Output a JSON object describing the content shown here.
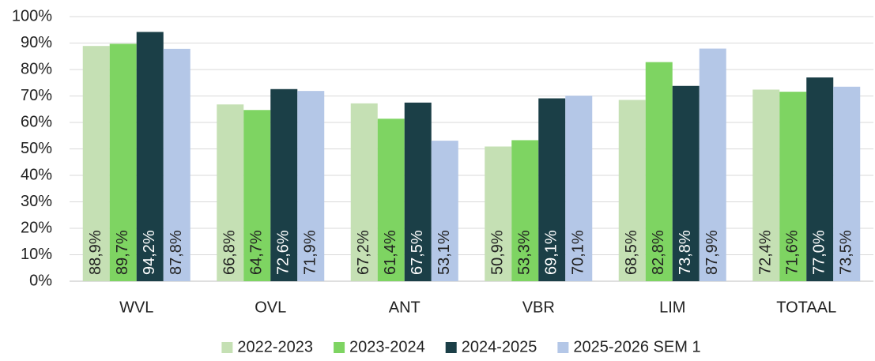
{
  "chart_data": {
    "type": "bar",
    "categories": [
      "WVL",
      "OVL",
      "ANT",
      "VBR",
      "LIM",
      "TOTAAL"
    ],
    "series": [
      {
        "name": "2022-2023",
        "color": "#c5e0b4",
        "label_color": "#222222",
        "values": [
          88.9,
          66.8,
          67.2,
          50.9,
          68.5,
          72.4
        ],
        "value_labels": [
          "88,9%",
          "66,8%",
          "67,2%",
          "50,9%",
          "68,5%",
          "72,4%"
        ]
      },
      {
        "name": "2023-2024",
        "color": "#7ed462",
        "label_color": "#222222",
        "values": [
          89.7,
          64.7,
          61.4,
          53.3,
          82.8,
          71.6
        ],
        "value_labels": [
          "89,7%",
          "64,7%",
          "61,4%",
          "53,3%",
          "82,8%",
          "71,6%"
        ]
      },
      {
        "name": "2024-2025",
        "color": "#1b3f47",
        "label_color": "#ffffff",
        "values": [
          94.2,
          72.6,
          67.5,
          69.1,
          73.8,
          77.0
        ],
        "value_labels": [
          "94,2%",
          "72,6%",
          "67,5%",
          "69,1%",
          "73,8%",
          "77,0%"
        ]
      },
      {
        "name": "2025-2026 SEM 1",
        "color": "#b4c7e7",
        "label_color": "#222222",
        "values": [
          87.8,
          71.9,
          53.1,
          70.1,
          87.9,
          73.5
        ],
        "value_labels": [
          "87,8%",
          "71,9%",
          "53,1%",
          "70,1%",
          "87,9%",
          "73,5%"
        ]
      }
    ],
    "ylim": [
      0,
      100
    ],
    "yticks": [
      {
        "value": 0,
        "label": "0%"
      },
      {
        "value": 10,
        "label": "10%"
      },
      {
        "value": 20,
        "label": "20%"
      },
      {
        "value": 30,
        "label": "30%"
      },
      {
        "value": 40,
        "label": "40%"
      },
      {
        "value": 50,
        "label": "50%"
      },
      {
        "value": 60,
        "label": "60%"
      },
      {
        "value": 70,
        "label": "70%"
      },
      {
        "value": 80,
        "label": "80%"
      },
      {
        "value": 90,
        "label": "90%"
      },
      {
        "value": 100,
        "label": "100%"
      }
    ],
    "grid": true,
    "legend": "bottom"
  }
}
